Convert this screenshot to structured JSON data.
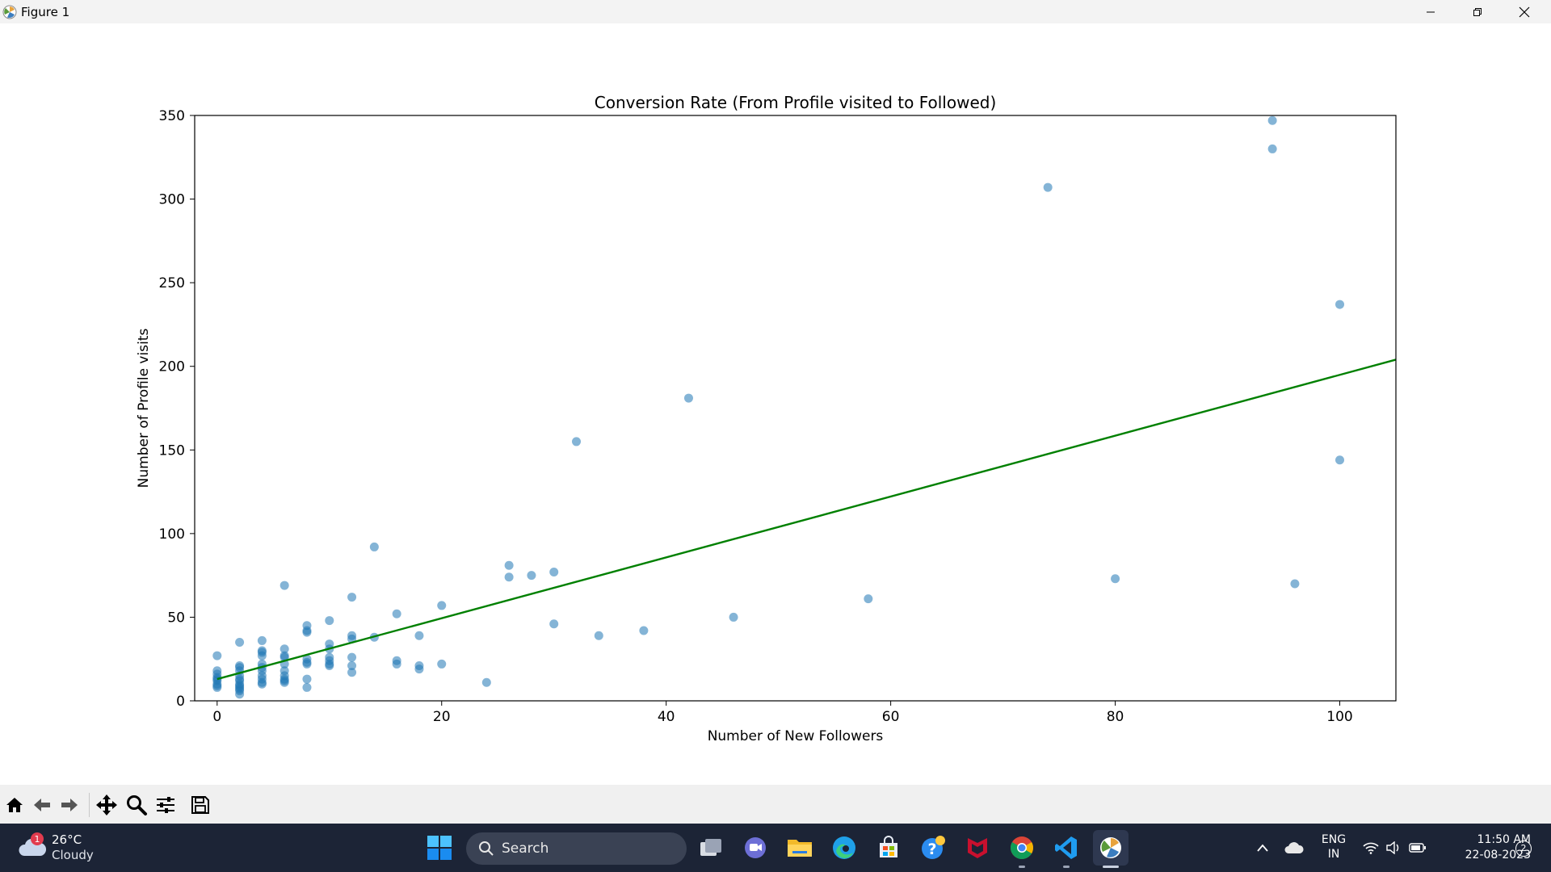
{
  "window": {
    "title": "Figure 1"
  },
  "toolbar_items": [
    {
      "name": "home-icon",
      "label": "Home"
    },
    {
      "name": "back-icon",
      "label": "Back"
    },
    {
      "name": "forward-icon",
      "label": "Forward"
    },
    {
      "name": "pan-icon",
      "label": "Pan"
    },
    {
      "name": "zoom-icon",
      "label": "Zoom"
    },
    {
      "name": "configure-subplots-icon",
      "label": "Subplots"
    },
    {
      "name": "save-icon",
      "label": "Save"
    }
  ],
  "taskbar": {
    "weather": {
      "temp": "26°C",
      "condition": "Cloudy",
      "badge": "1"
    },
    "search_label": "Search",
    "language": {
      "line1": "ENG",
      "line2": "IN"
    },
    "clock": {
      "time": "11:50 AM",
      "date": "22-08-2023"
    },
    "notification_count": "2",
    "apps": [
      "task-view-icon",
      "teams-chat-icon",
      "file-explorer-icon",
      "edge-icon",
      "store-icon",
      "help-icon",
      "mcafee-icon",
      "chrome-icon",
      "vscode-icon",
      "matplotlib-icon"
    ]
  },
  "colors": {
    "point": "#1f77b4",
    "fit_line": "#008000",
    "taskbar": "#1c2436"
  },
  "chart_data": {
    "type": "scatter",
    "title": "Conversion Rate (From Profile visited to Followed)",
    "xlabel": "Number of New Followers",
    "ylabel": "Number of Profile visits",
    "xlim": [
      -2,
      105
    ],
    "ylim": [
      0,
      350
    ],
    "xticks": [
      0,
      20,
      40,
      60,
      80,
      100
    ],
    "yticks": [
      0,
      50,
      100,
      150,
      200,
      250,
      300,
      350
    ],
    "grid": false,
    "legend": "none",
    "points": [
      [
        0,
        27
      ],
      [
        0,
        18
      ],
      [
        0,
        16
      ],
      [
        0,
        14
      ],
      [
        0,
        12
      ],
      [
        0,
        10
      ],
      [
        0,
        9
      ],
      [
        0,
        8
      ],
      [
        0,
        13
      ],
      [
        2,
        35
      ],
      [
        2,
        21
      ],
      [
        2,
        20
      ],
      [
        2,
        18
      ],
      [
        2,
        15
      ],
      [
        2,
        13
      ],
      [
        2,
        12
      ],
      [
        2,
        10
      ],
      [
        2,
        9
      ],
      [
        2,
        8
      ],
      [
        2,
        7
      ],
      [
        2,
        6
      ],
      [
        2,
        4
      ],
      [
        4,
        36
      ],
      [
        4,
        30
      ],
      [
        4,
        29
      ],
      [
        4,
        27
      ],
      [
        4,
        22
      ],
      [
        4,
        20
      ],
      [
        4,
        18
      ],
      [
        4,
        15
      ],
      [
        4,
        13
      ],
      [
        4,
        11
      ],
      [
        4,
        10
      ],
      [
        6,
        69
      ],
      [
        6,
        31
      ],
      [
        6,
        27
      ],
      [
        6,
        26
      ],
      [
        6,
        22
      ],
      [
        6,
        18
      ],
      [
        6,
        15
      ],
      [
        6,
        13
      ],
      [
        6,
        12
      ],
      [
        6,
        11
      ],
      [
        8,
        45
      ],
      [
        8,
        42
      ],
      [
        8,
        41
      ],
      [
        8,
        25
      ],
      [
        8,
        23
      ],
      [
        8,
        22
      ],
      [
        8,
        13
      ],
      [
        8,
        8
      ],
      [
        10,
        48
      ],
      [
        10,
        34
      ],
      [
        10,
        31
      ],
      [
        10,
        26
      ],
      [
        10,
        24
      ],
      [
        10,
        22
      ],
      [
        10,
        21
      ],
      [
        12,
        62
      ],
      [
        12,
        39
      ],
      [
        12,
        37
      ],
      [
        12,
        26
      ],
      [
        12,
        21
      ],
      [
        12,
        17
      ],
      [
        14,
        92
      ],
      [
        14,
        38
      ],
      [
        16,
        52
      ],
      [
        16,
        24
      ],
      [
        16,
        22
      ],
      [
        18,
        39
      ],
      [
        18,
        21
      ],
      [
        18,
        19
      ],
      [
        20,
        57
      ],
      [
        20,
        22
      ],
      [
        24,
        11
      ],
      [
        26,
        81
      ],
      [
        26,
        74
      ],
      [
        28,
        75
      ],
      [
        30,
        77
      ],
      [
        30,
        46
      ],
      [
        32,
        155
      ],
      [
        34,
        39
      ],
      [
        38,
        42
      ],
      [
        42,
        181
      ],
      [
        46,
        50
      ],
      [
        58,
        61
      ],
      [
        74,
        307
      ],
      [
        80,
        73
      ],
      [
        94,
        347
      ],
      [
        94,
        330
      ],
      [
        96,
        70
      ],
      [
        100,
        237
      ],
      [
        100,
        144
      ]
    ],
    "fit_line": {
      "x": [
        0,
        105
      ],
      "y": [
        13,
        204
      ]
    }
  }
}
